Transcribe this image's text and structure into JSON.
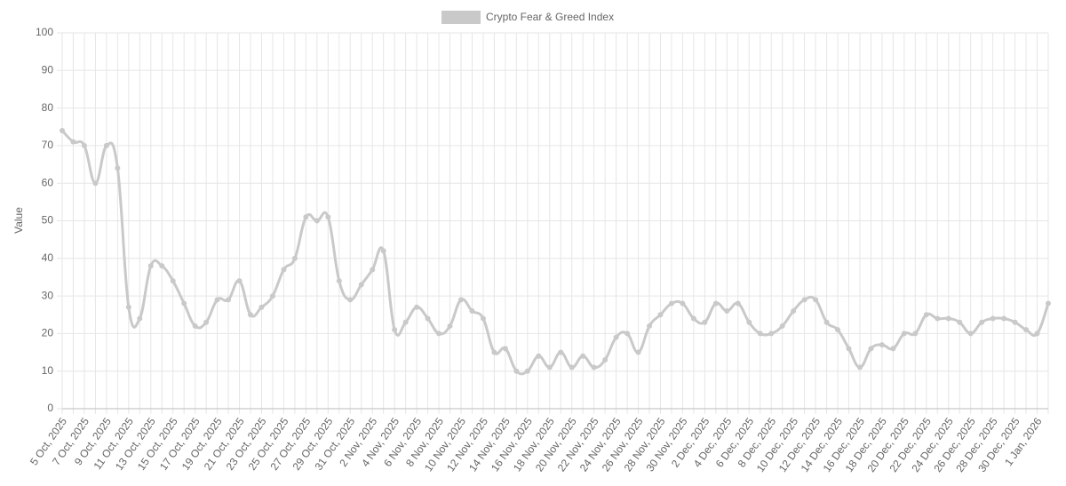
{
  "chart_data": {
    "type": "line",
    "y_label": "Value",
    "categories": [
      "5 Oct, 2025",
      null,
      "7 Oct, 2025",
      null,
      "9 Oct, 2025",
      null,
      "11 Oct, 2025",
      null,
      "13 Oct, 2025",
      null,
      "15 Oct, 2025",
      null,
      "17 Oct, 2025",
      null,
      "19 Oct, 2025",
      null,
      "21 Oct, 2025",
      null,
      "23 Oct, 2025",
      null,
      "25 Oct, 2025",
      null,
      "27 Oct, 2025",
      null,
      "29 Oct, 2025",
      null,
      "31 Oct, 2025",
      null,
      "2 Nov, 2025",
      null,
      "4 Nov, 2025",
      null,
      "6 Nov, 2025",
      null,
      "8 Nov, 2025",
      null,
      "10 Nov, 2025",
      null,
      "12 Nov, 2025",
      null,
      "14 Nov, 2025",
      null,
      "16 Nov, 2025",
      null,
      "18 Nov, 2025",
      null,
      "20 Nov, 2025",
      null,
      "22 Nov, 2025",
      null,
      "24 Nov, 2025",
      null,
      "26 Nov, 2025",
      null,
      "28 Nov, 2025",
      null,
      "30 Nov, 2025",
      null,
      "2 Dec, 2025",
      null,
      "4 Dec, 2025",
      null,
      "6 Dec, 2025",
      null,
      "8 Dec, 2025",
      null,
      "10 Dec, 2025",
      null,
      "12 Dec, 2025",
      null,
      "14 Dec, 2025",
      null,
      "16 Dec, 2025",
      null,
      "18 Dec, 2025",
      null,
      "20 Dec, 2025",
      null,
      "22 Dec, 2025",
      null,
      "24 Dec, 2025",
      null,
      "26 Dec, 2025",
      null,
      "28 Dec, 2025",
      null,
      "30 Dec, 2025",
      null,
      "1 Jan, 2026",
      null
    ],
    "series": [
      {
        "name": "Crypto Fear & Greed Index",
        "color": "#c9c9c9",
        "values": [
          74,
          71,
          70,
          60,
          70,
          64,
          27,
          24,
          38,
          38,
          34,
          28,
          22,
          23,
          29,
          29,
          34,
          25,
          27,
          30,
          37,
          40,
          51,
          50,
          51,
          34,
          29,
          33,
          37,
          42,
          21,
          23,
          27,
          24,
          20,
          22,
          29,
          26,
          24,
          15,
          16,
          10,
          10,
          14,
          11,
          15,
          11,
          14,
          11,
          13,
          19,
          20,
          15,
          22,
          25,
          28,
          28,
          24,
          23,
          28,
          26,
          28,
          23,
          20,
          20,
          22,
          26,
          29,
          29,
          23,
          21,
          16,
          11,
          16,
          17,
          16,
          20,
          20,
          25,
          24,
          24,
          23,
          20,
          23,
          24,
          24,
          23,
          21,
          20,
          28
        ]
      }
    ],
    "ylim": [
      0,
      100
    ],
    "yticks": [
      0,
      10,
      20,
      30,
      40,
      50,
      60,
      70,
      80,
      90,
      100
    ],
    "grid": true,
    "legend": "top"
  }
}
